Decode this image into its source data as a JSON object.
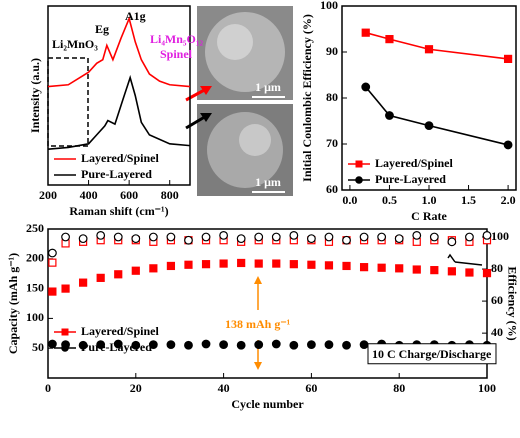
{
  "chart_data": [
    {
      "type": "line",
      "xlabel": "Raman shift (cm⁻¹)",
      "ylabel": "Intensity (a.u.)",
      "xlim": [
        200,
        900
      ],
      "xticks": [
        200,
        400,
        600,
        800
      ],
      "ylim": [
        0,
        10
      ],
      "legend": "lower left",
      "series": [
        {
          "name": "Layered/Spinel",
          "color": "#ff0000",
          "x": [
            200,
            300,
            400,
            440,
            470,
            490,
            520,
            560,
            600,
            630,
            660,
            700,
            750,
            800,
            900
          ],
          "values": [
            5.5,
            5.6,
            6.3,
            6.8,
            7.0,
            7.8,
            7.0,
            8.2,
            9.3,
            8.0,
            7.0,
            6.2,
            5.8,
            5.6,
            5.5
          ]
        },
        {
          "name": "Pure-Layered",
          "color": "#000000",
          "x": [
            200,
            300,
            400,
            440,
            480,
            495,
            530,
            570,
            605,
            630,
            660,
            700,
            800,
            900
          ],
          "values": [
            2.0,
            2.1,
            2.3,
            2.8,
            3.3,
            3.6,
            3.4,
            4.8,
            6.0,
            5.0,
            3.5,
            2.8,
            2.3,
            2.2
          ]
        }
      ],
      "annotations": [
        {
          "text": "Li₂MnO₃",
          "color": "#000000"
        },
        {
          "text": "Eg",
          "color": "#000000"
        },
        {
          "text": "A1g",
          "color": "#000000"
        },
        {
          "text": "Li₄Mn₅O₁₂",
          "color": "#e020e0"
        },
        {
          "text": "Spinel",
          "color": "#e020e0"
        }
      ]
    },
    {
      "type": "line",
      "xlabel": "C Rate",
      "ylabel": "Initial Coulombic Efficiency (%)",
      "xlim": [
        -0.1,
        2.1
      ],
      "xticks": [
        {
          "value": 0,
          "label": "0.0"
        },
        0.5,
        {
          "value": 1,
          "label": "1.0"
        },
        1.5,
        {
          "value": 2,
          "label": "2.0"
        }
      ],
      "ylim": [
        60,
        100
      ],
      "yticks": [
        60,
        70,
        80,
        90,
        100
      ],
      "legend": "lower left",
      "x": [
        0.2,
        0.5,
        1.0,
        2.0
      ],
      "series": [
        {
          "name": "Layered/Spinel",
          "color": "#ff0000",
          "marker": "square",
          "values": [
            94.2,
            92.8,
            90.6,
            88.5
          ]
        },
        {
          "name": "Pure-Layered",
          "color": "#000000",
          "marker": "circle",
          "values": [
            82.4,
            76.2,
            74.0,
            69.8
          ]
        }
      ]
    },
    {
      "type": "scatter",
      "xlabel": "Cycle number",
      "ylabel": "Capacity (mAh g⁻¹)",
      "y2label": "Efficiency (%)",
      "xlim": [
        0,
        100
      ],
      "xticks": [
        0,
        20,
        40,
        60,
        80,
        100
      ],
      "ylim": [
        0,
        250
      ],
      "yticks": [
        50,
        100,
        150,
        200,
        250
      ],
      "y2lim": [
        12,
        105
      ],
      "y2ticks": [
        40,
        60,
        80,
        100
      ],
      "legend": "lower left",
      "x": [
        1,
        4,
        8,
        12,
        16,
        20,
        24,
        28,
        32,
        36,
        40,
        44,
        48,
        52,
        56,
        60,
        64,
        68,
        72,
        76,
        80,
        84,
        88,
        92,
        96,
        100
      ],
      "series": [
        {
          "name": "Layered/Spinel",
          "color": "#ff0000",
          "marker": "square",
          "values": [
            145,
            150,
            160,
            168,
            174,
            180,
            184,
            188,
            190,
            191,
            192,
            193,
            192,
            192,
            191,
            190,
            189,
            188,
            186,
            185,
            184,
            182,
            181,
            179,
            177,
            176
          ]
        },
        {
          "name": "Pure-Layered",
          "color": "#000000",
          "marker": "circle",
          "values": [
            57,
            56,
            55,
            56,
            57,
            55,
            56,
            56,
            55,
            57,
            56,
            55,
            56,
            57,
            55,
            56,
            56,
            55,
            56,
            57,
            55,
            56,
            56,
            55,
            56,
            55
          ]
        },
        {
          "color": "#ff0000",
          "marker": "square",
          "open": true,
          "axis": "y2",
          "values": [
            84,
            96,
            97,
            98,
            98,
            98,
            97,
            98,
            98,
            98,
            98,
            97,
            98,
            98,
            98,
            98,
            97,
            98,
            98,
            98,
            98,
            97,
            98,
            98,
            97,
            98
          ]
        },
        {
          "color": "#000000",
          "marker": "circle",
          "open": true,
          "axis": "y2",
          "values": [
            90,
            100,
            99,
            101,
            100,
            99,
            100,
            100,
            98,
            100,
            101,
            99,
            100,
            100,
            101,
            99,
            100,
            98,
            100,
            100,
            99,
            101,
            100,
            97,
            100,
            101
          ]
        }
      ],
      "annotations": [
        {
          "text": "138 mAh g⁻¹",
          "color": "#ff8c00"
        },
        {
          "text": "10 C Charge/Discharge",
          "color": "#000000"
        }
      ]
    }
  ],
  "image_labels": [
    "1 μm",
    "1 μm"
  ]
}
